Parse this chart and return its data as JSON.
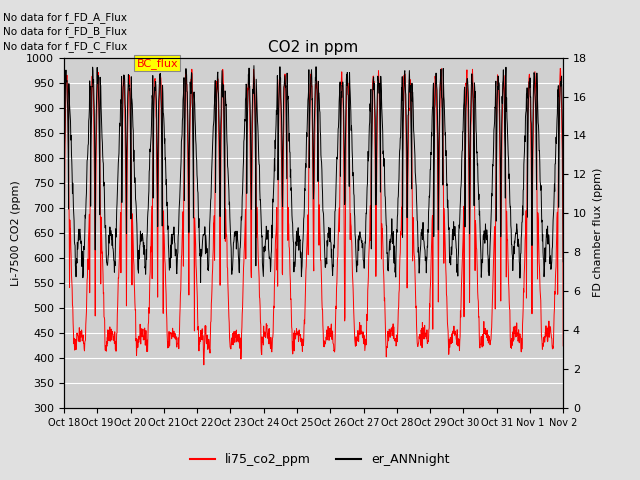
{
  "title": "CO2 in ppm",
  "ylabel_left": "Li-7500 CO2 (ppm)",
  "ylabel_right": "FD chamber flux (ppm)",
  "ylim_left": [
    300,
    1000
  ],
  "ylim_right": [
    0,
    18
  ],
  "yticks_left": [
    300,
    350,
    400,
    450,
    500,
    550,
    600,
    650,
    700,
    750,
    800,
    850,
    900,
    950,
    1000
  ],
  "yticks_right": [
    0,
    2,
    4,
    6,
    8,
    10,
    12,
    14,
    16,
    18
  ],
  "xtick_labels": [
    "Oct 18",
    "Oct 19",
    "Oct 20",
    "Oct 21",
    "Oct 22",
    "Oct 23",
    "Oct 24",
    "Oct 25",
    "Oct 26",
    "Oct 27",
    "Oct 28",
    "Oct 29",
    "Oct 30",
    "Oct 31",
    "Nov 1",
    "Nov 2"
  ],
  "legend_entries": [
    "li75_co2_ppm",
    "er_ANNnight"
  ],
  "line_colors": [
    "red",
    "black"
  ],
  "text_annotations": [
    "No data for f_FD_A_Flux",
    "No data for f_FD_B_Flux",
    "No data for f_FD_C_Flux"
  ],
  "bc_flux_label": "BC_flux",
  "fig_facecolor": "#e0e0e0",
  "ax_facecolor": "#d0d0d0"
}
